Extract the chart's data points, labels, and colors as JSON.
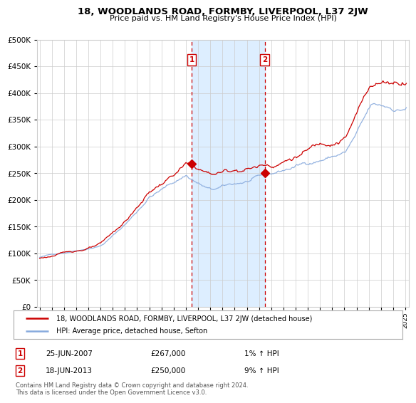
{
  "title": "18, WOODLANDS ROAD, FORMBY, LIVERPOOL, L37 2JW",
  "subtitle": "Price paid vs. HM Land Registry's House Price Index (HPI)",
  "hpi_label": "HPI: Average price, detached house, Sefton",
  "price_label": "18, WOODLANDS ROAD, FORMBY, LIVERPOOL, L37 2JW (detached house)",
  "transaction1": {
    "label": "1",
    "date": "25-JUN-2007",
    "price": "£267,000",
    "hpi": "1% ↑ HPI",
    "year": 2007.48,
    "value": 267000
  },
  "transaction2": {
    "label": "2",
    "date": "18-JUN-2013",
    "price": "£250,000",
    "hpi": "9% ↑ HPI",
    "year": 2013.46,
    "value": 250000
  },
  "price_color": "#cc0000",
  "hpi_color": "#88aadd",
  "highlight_bg": "#ddeeff",
  "vline_color": "#cc0000",
  "grid_color": "#cccccc",
  "bg_color": "#ffffff",
  "ylim": [
    0,
    500000
  ],
  "xlim_start": 1994.8,
  "xlim_end": 2025.3,
  "footer_text": "Contains HM Land Registry data © Crown copyright and database right 2024.\nThis data is licensed under the Open Government Licence v3.0."
}
